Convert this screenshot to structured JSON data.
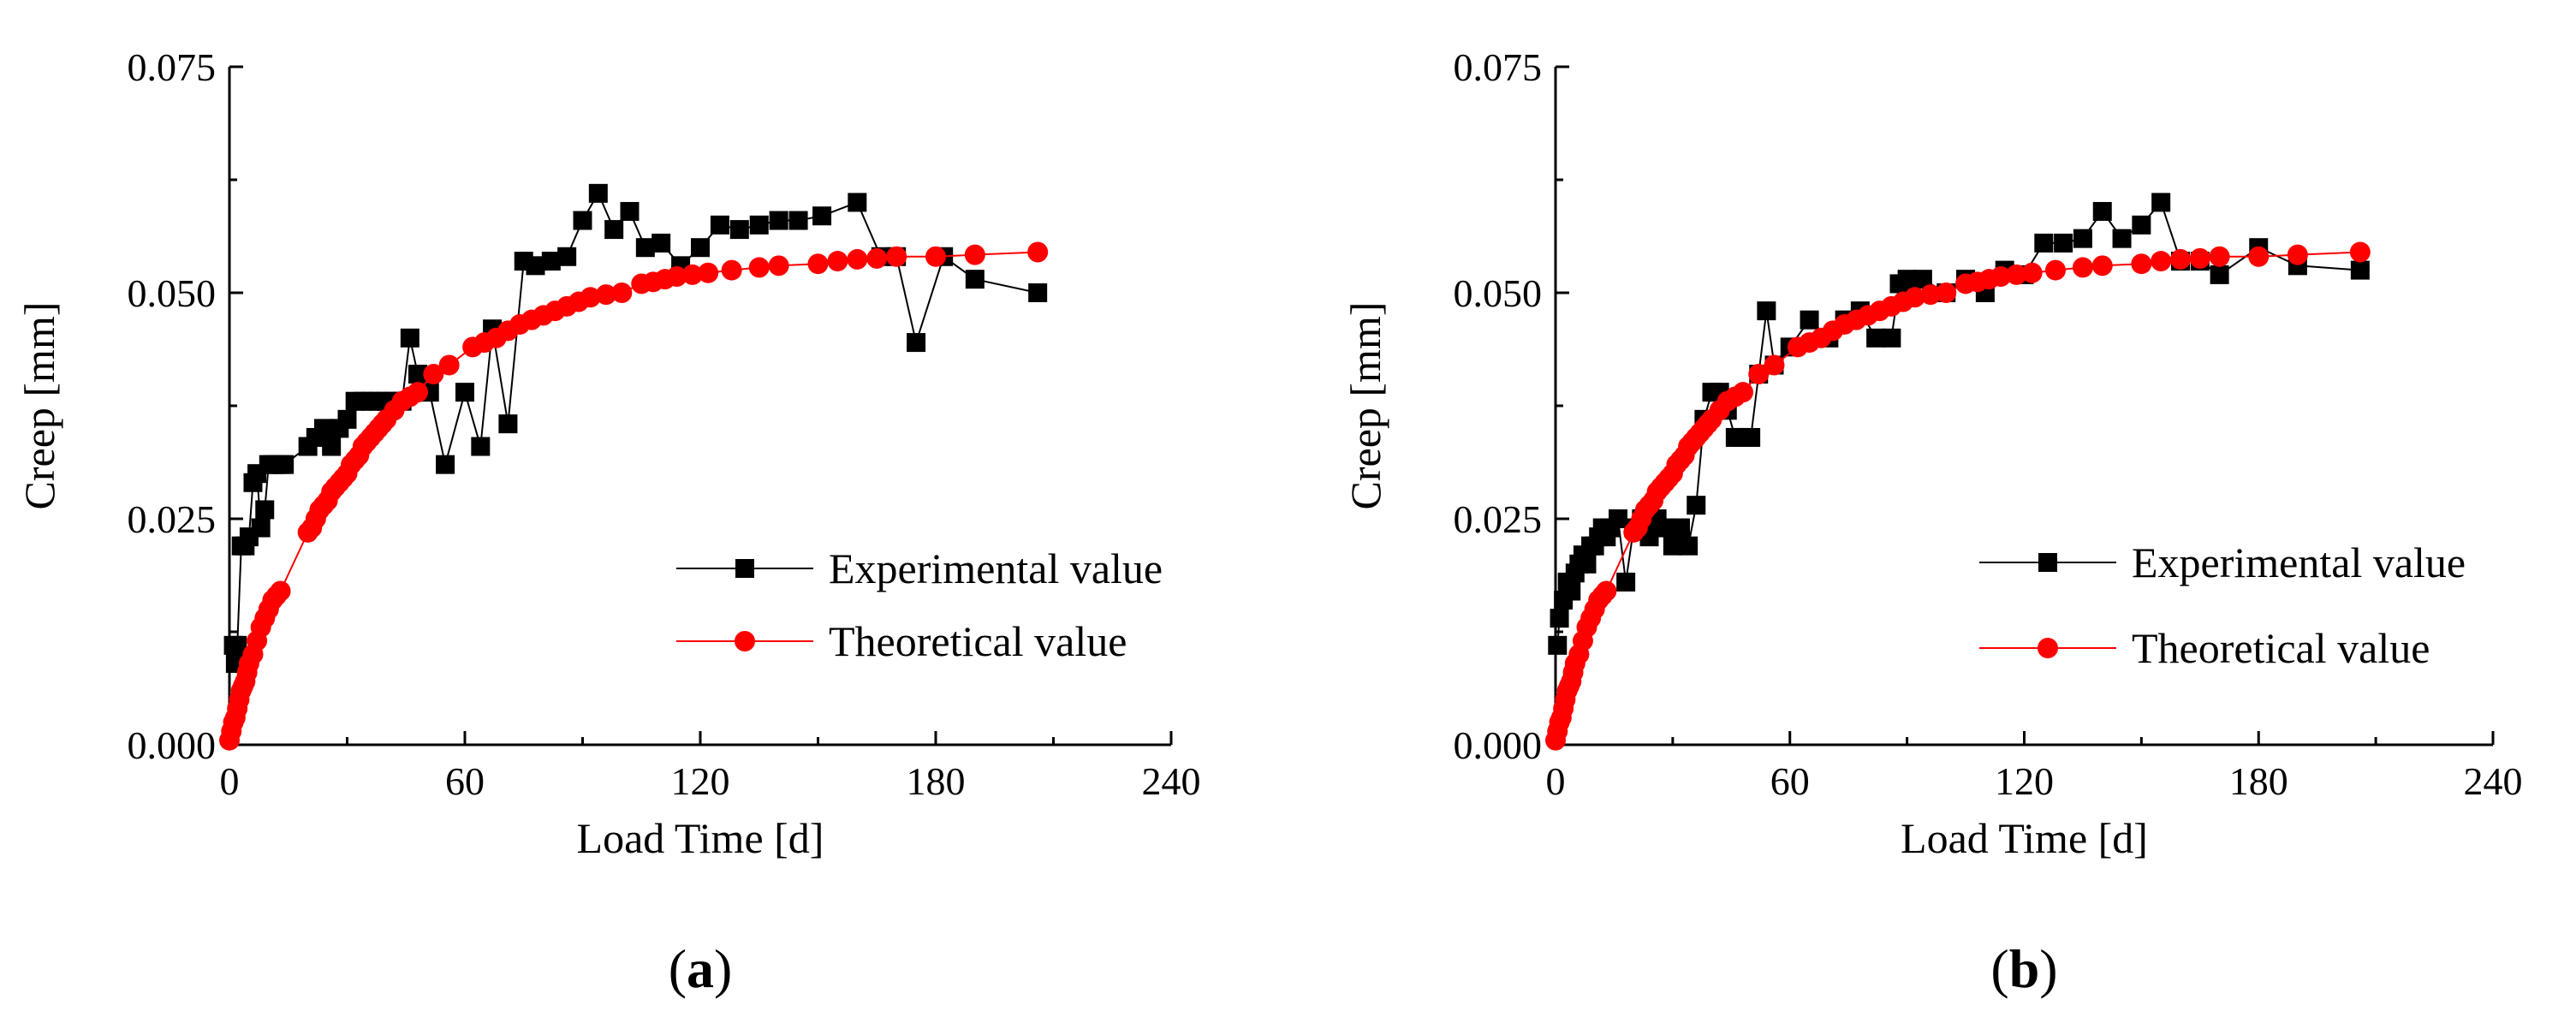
{
  "figure": {
    "panels": [
      "(a)",
      "(b)"
    ],
    "panel_labels": [
      {
        "open": "(",
        "letter": "a",
        "close": ")"
      },
      {
        "open": "(",
        "letter": "b",
        "close": ")"
      }
    ]
  },
  "colors": {
    "experimental": "#000000",
    "theoretical": "#ff0000",
    "axis": "#000000"
  },
  "chart_data": [
    {
      "panel": "a",
      "type": "line",
      "title": "",
      "xlabel": "Load Time [d]",
      "ylabel": "Creep [mm]",
      "xlim": [
        0,
        240
      ],
      "ylim": [
        0,
        0.075
      ],
      "xticks": [
        0,
        60,
        120,
        180,
        240
      ],
      "yticks": [
        0.0,
        0.025,
        0.05,
        0.075
      ],
      "xtick_labels": [
        "0",
        "60",
        "120",
        "180",
        "240"
      ],
      "ytick_labels": [
        "0.000",
        "0.025",
        "0.050",
        "0.075"
      ],
      "legend_position": "right",
      "series": [
        {
          "name": "Experimental value",
          "marker": "square",
          "color": "#000000",
          "x": [
            1,
            1.5,
            2,
            3,
            4,
            5,
            6,
            7,
            8,
            9,
            10,
            11,
            12,
            13,
            14,
            20,
            22,
            24,
            26,
            28,
            30,
            32,
            34,
            36,
            38,
            40,
            42,
            44,
            46,
            48,
            51,
            55,
            60,
            64,
            67,
            71,
            75,
            78,
            82,
            86,
            90,
            94,
            98,
            102,
            106,
            110,
            115,
            120,
            125,
            130,
            135,
            140,
            145,
            151,
            160,
            166,
            170,
            175,
            182,
            190,
            206
          ],
          "y": [
            0.011,
            0.009,
            0.011,
            0.022,
            0.022,
            0.023,
            0.029,
            0.03,
            0.024,
            0.026,
            0.031,
            0.031,
            0.031,
            0.031,
            0.031,
            0.033,
            0.034,
            0.035,
            0.033,
            0.035,
            0.036,
            0.038,
            0.038,
            0.038,
            0.038,
            0.038,
            0.038,
            0.038,
            0.045,
            0.041,
            0.039,
            0.031,
            0.039,
            0.033,
            0.046,
            0.0355,
            0.0535,
            0.053,
            0.0535,
            0.054,
            0.058,
            0.061,
            0.057,
            0.059,
            0.055,
            0.0555,
            0.053,
            0.055,
            0.0575,
            0.057,
            0.0575,
            0.058,
            0.058,
            0.0585,
            0.06,
            0.054,
            0.054,
            0.0445,
            0.054,
            0.0515,
            0.05
          ]
        },
        {
          "name": "Theoretical value",
          "marker": "circle",
          "color": "#ff0000",
          "x": [
            0,
            0.5,
            1,
            1.5,
            2,
            2.5,
            3,
            3.5,
            4,
            4.5,
            5,
            6,
            7,
            8,
            9,
            10,
            11,
            12,
            13,
            20,
            21,
            22,
            23,
            24,
            25,
            26,
            27,
            28,
            29,
            30,
            31,
            32,
            33,
            34,
            35,
            36,
            37,
            38,
            39,
            40,
            42,
            44,
            46,
            48,
            52,
            56,
            62,
            65,
            68,
            71,
            74,
            77,
            80,
            83,
            86,
            89,
            92,
            96,
            100,
            105,
            108,
            111,
            114,
            118,
            122,
            128,
            135,
            140,
            150,
            155,
            160,
            165,
            170,
            180,
            190,
            206
          ],
          "y": [
            0.0005,
            0.0015,
            0.0025,
            0.003,
            0.004,
            0.005,
            0.006,
            0.0065,
            0.007,
            0.008,
            0.009,
            0.01,
            0.0115,
            0.013,
            0.014,
            0.015,
            0.016,
            0.0165,
            0.017,
            0.0235,
            0.024,
            0.025,
            0.026,
            0.0265,
            0.027,
            0.028,
            0.0285,
            0.029,
            0.0295,
            0.03,
            0.031,
            0.0315,
            0.032,
            0.033,
            0.0335,
            0.034,
            0.0345,
            0.035,
            0.0355,
            0.036,
            0.037,
            0.038,
            0.0385,
            0.039,
            0.041,
            0.042,
            0.044,
            0.0445,
            0.045,
            0.0458,
            0.0465,
            0.047,
            0.0475,
            0.048,
            0.0485,
            0.049,
            0.0495,
            0.0498,
            0.05,
            0.051,
            0.0512,
            0.0515,
            0.0518,
            0.052,
            0.0522,
            0.0525,
            0.0528,
            0.053,
            0.0532,
            0.0535,
            0.0537,
            0.0538,
            0.054,
            0.054,
            0.0542,
            0.0545
          ]
        }
      ]
    },
    {
      "panel": "b",
      "type": "line",
      "title": "",
      "xlabel": "Load Time [d]",
      "ylabel": "Creep [mm]",
      "xlim": [
        0,
        240
      ],
      "ylim": [
        0,
        0.075
      ],
      "xticks": [
        0,
        60,
        120,
        180,
        240
      ],
      "yticks": [
        0.0,
        0.025,
        0.05,
        0.075
      ],
      "xtick_labels": [
        "0",
        "60",
        "120",
        "180",
        "240"
      ],
      "ytick_labels": [
        "0.000",
        "0.025",
        "0.050",
        "0.075"
      ],
      "legend_position": "right",
      "series": [
        {
          "name": "Experimental value",
          "marker": "square",
          "color": "#000000",
          "x": [
            0.5,
            1,
            2,
            3,
            4,
            5,
            6,
            7,
            8,
            9,
            10,
            11,
            12,
            13,
            14,
            16,
            18,
            20,
            22,
            24,
            26,
            28,
            30,
            32,
            34,
            36,
            38,
            40,
            42,
            44,
            46,
            48,
            50,
            52,
            54,
            56,
            60,
            65,
            70,
            74,
            78,
            82,
            86,
            88,
            90,
            94,
            100,
            105,
            110,
            115,
            120,
            125,
            130,
            135,
            140,
            145,
            150,
            155,
            160,
            165,
            170,
            180,
            190,
            206
          ],
          "y": [
            0.011,
            0.014,
            0.016,
            0.018,
            0.017,
            0.019,
            0.02,
            0.021,
            0.02,
            0.022,
            0.022,
            0.023,
            0.024,
            0.023,
            0.024,
            0.025,
            0.018,
            0.024,
            0.025,
            0.023,
            0.025,
            0.024,
            0.022,
            0.024,
            0.022,
            0.0265,
            0.036,
            0.039,
            0.039,
            0.037,
            0.034,
            0.034,
            0.034,
            0.041,
            0.048,
            0.042,
            0.044,
            0.047,
            0.045,
            0.047,
            0.048,
            0.045,
            0.045,
            0.051,
            0.0515,
            0.0515,
            0.05,
            0.0515,
            0.05,
            0.0525,
            0.052,
            0.0555,
            0.0555,
            0.056,
            0.059,
            0.056,
            0.0575,
            0.06,
            0.0535,
            0.0535,
            0.052,
            0.055,
            0.053,
            0.0525
          ]
        },
        {
          "name": "Theoretical value",
          "marker": "circle",
          "color": "#ff0000",
          "x": [
            0,
            0.5,
            1,
            1.5,
            2,
            2.5,
            3,
            3.5,
            4,
            4.5,
            5,
            6,
            7,
            8,
            9,
            10,
            11,
            12,
            13,
            20,
            21,
            22,
            23,
            24,
            25,
            26,
            27,
            28,
            29,
            30,
            31,
            32,
            33,
            34,
            35,
            36,
            37,
            38,
            39,
            40,
            42,
            44,
            46,
            48,
            52,
            56,
            62,
            65,
            68,
            71,
            74,
            77,
            80,
            83,
            86,
            89,
            92,
            96,
            100,
            105,
            108,
            111,
            114,
            118,
            122,
            128,
            135,
            140,
            150,
            155,
            160,
            165,
            170,
            180,
            190,
            206
          ],
          "y": [
            0.0005,
            0.0015,
            0.0025,
            0.003,
            0.004,
            0.005,
            0.006,
            0.0065,
            0.007,
            0.008,
            0.009,
            0.01,
            0.0115,
            0.013,
            0.014,
            0.015,
            0.016,
            0.0165,
            0.017,
            0.0235,
            0.024,
            0.025,
            0.026,
            0.0265,
            0.027,
            0.028,
            0.0285,
            0.029,
            0.0295,
            0.03,
            0.031,
            0.0315,
            0.032,
            0.033,
            0.0335,
            0.034,
            0.0345,
            0.035,
            0.0355,
            0.036,
            0.037,
            0.038,
            0.0385,
            0.039,
            0.041,
            0.042,
            0.044,
            0.0445,
            0.045,
            0.0458,
            0.0465,
            0.047,
            0.0475,
            0.048,
            0.0485,
            0.049,
            0.0495,
            0.0498,
            0.05,
            0.051,
            0.0512,
            0.0515,
            0.0518,
            0.052,
            0.0522,
            0.0525,
            0.0528,
            0.053,
            0.0532,
            0.0535,
            0.0537,
            0.0538,
            0.054,
            0.054,
            0.0542,
            0.0545
          ]
        }
      ]
    }
  ]
}
